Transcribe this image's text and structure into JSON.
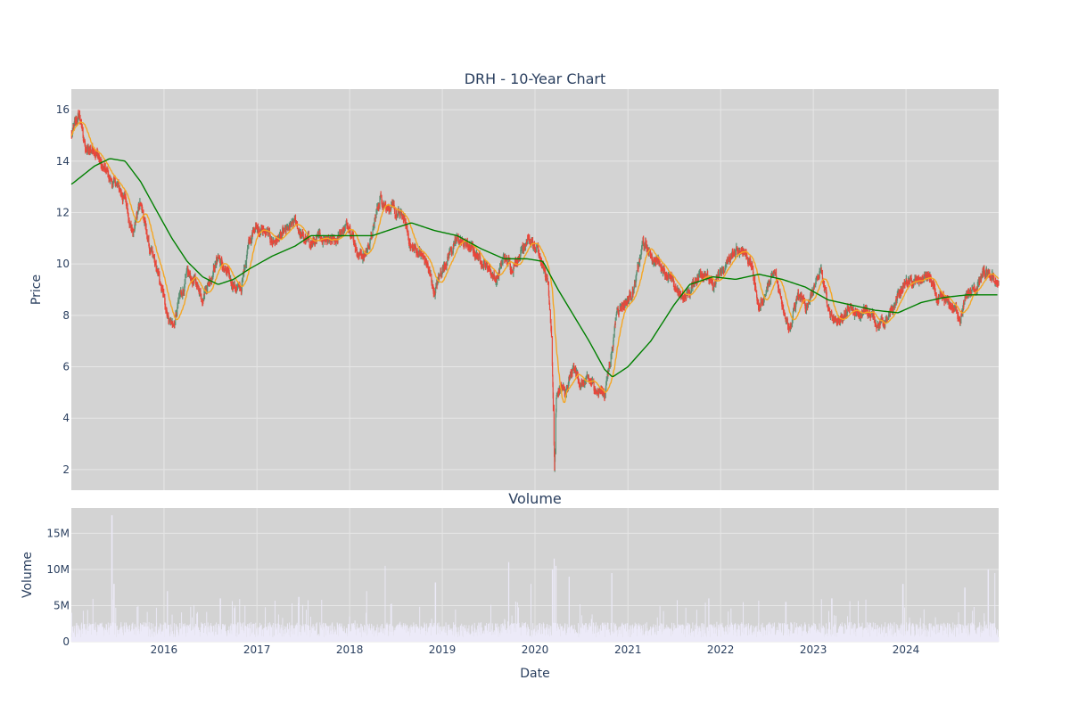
{
  "chart_data": [
    {
      "type": "candlestick",
      "title": "DRH - 10-Year Chart",
      "xlabel": "",
      "ylabel": "Price",
      "x_tick_labels": [
        "2016",
        "2017",
        "2018",
        "2019",
        "2020",
        "2021",
        "2022",
        "2023",
        "2024"
      ],
      "y_tick_labels": [
        "2",
        "4",
        "6",
        "8",
        "10",
        "12",
        "14",
        "16"
      ],
      "xlim": [
        "2015-01-01",
        "2024-12-31"
      ],
      "ylim": [
        1.2,
        16.8
      ],
      "grid": true,
      "colors": {
        "background": "#d3d3d3",
        "grid": "#e6e6e6",
        "up": "#5b8f73",
        "down": "#e8463a",
        "ma_short": "#f5a623",
        "ma_long": "#008000"
      },
      "close_points": [
        [
          "2015-01-02",
          15.0
        ],
        [
          "2015-02-01",
          15.8
        ],
        [
          "2015-03-01",
          14.3
        ],
        [
          "2015-04-01",
          14.6
        ],
        [
          "2015-05-01",
          13.8
        ],
        [
          "2015-06-01",
          13.3
        ],
        [
          "2015-07-01",
          13.0
        ],
        [
          "2015-08-01",
          12.5
        ],
        [
          "2015-09-01",
          11.2
        ],
        [
          "2015-10-01",
          12.5
        ],
        [
          "2015-11-01",
          10.7
        ],
        [
          "2015-12-01",
          9.8
        ],
        [
          "2016-01-01",
          8.6
        ],
        [
          "2016-01-20",
          7.9
        ],
        [
          "2016-02-10",
          7.6
        ],
        [
          "2016-03-01",
          8.6
        ],
        [
          "2016-04-01",
          9.5
        ],
        [
          "2016-05-01",
          9.3
        ],
        [
          "2016-06-01",
          8.8
        ],
        [
          "2016-07-01",
          9.5
        ],
        [
          "2016-08-01",
          10.3
        ],
        [
          "2016-09-01",
          9.6
        ],
        [
          "2016-10-01",
          9.2
        ],
        [
          "2016-11-01",
          9.0
        ],
        [
          "2016-12-01",
          11.1
        ],
        [
          "2017-01-01",
          11.4
        ],
        [
          "2017-02-01",
          11.2
        ],
        [
          "2017-03-01",
          10.9
        ],
        [
          "2017-04-01",
          11.0
        ],
        [
          "2017-05-01",
          11.2
        ],
        [
          "2017-06-01",
          11.6
        ],
        [
          "2017-07-01",
          11.0
        ],
        [
          "2017-08-01",
          10.8
        ],
        [
          "2017-09-01",
          10.9
        ],
        [
          "2017-10-01",
          11.1
        ],
        [
          "2017-11-01",
          11.0
        ],
        [
          "2017-12-01",
          11.3
        ],
        [
          "2018-01-01",
          11.6
        ],
        [
          "2018-02-01",
          10.5
        ],
        [
          "2018-03-01",
          10.3
        ],
        [
          "2018-04-01",
          11.2
        ],
        [
          "2018-05-01",
          12.6
        ],
        [
          "2018-06-01",
          12.3
        ],
        [
          "2018-07-01",
          11.9
        ],
        [
          "2018-08-01",
          11.8
        ],
        [
          "2018-09-01",
          10.6
        ],
        [
          "2018-10-01",
          10.5
        ],
        [
          "2018-11-01",
          10.0
        ],
        [
          "2018-12-01",
          8.9
        ],
        [
          "2019-01-01",
          9.8
        ],
        [
          "2019-02-01",
          10.5
        ],
        [
          "2019-03-01",
          10.9
        ],
        [
          "2019-04-01",
          10.8
        ],
        [
          "2019-05-01",
          10.5
        ],
        [
          "2019-06-01",
          10.2
        ],
        [
          "2019-07-01",
          9.9
        ],
        [
          "2019-08-01",
          9.4
        ],
        [
          "2019-09-01",
          10.2
        ],
        [
          "2019-10-01",
          9.9
        ],
        [
          "2019-11-01",
          10.4
        ],
        [
          "2019-12-01",
          11.1
        ],
        [
          "2020-01-01",
          10.5
        ],
        [
          "2020-02-01",
          10.0
        ],
        [
          "2020-02-20",
          9.4
        ],
        [
          "2020-03-05",
          7.5
        ],
        [
          "2020-03-12",
          5.0
        ],
        [
          "2020-03-18",
          2.1
        ],
        [
          "2020-03-25",
          4.8
        ],
        [
          "2020-04-10",
          5.2
        ],
        [
          "2020-05-01",
          4.9
        ],
        [
          "2020-06-01",
          5.9
        ],
        [
          "2020-07-01",
          5.3
        ],
        [
          "2020-08-01",
          5.4
        ],
        [
          "2020-09-01",
          5.1
        ],
        [
          "2020-10-01",
          5.0
        ],
        [
          "2020-11-01",
          6.8
        ],
        [
          "2020-11-20",
          8.3
        ],
        [
          "2020-12-01",
          8.4
        ],
        [
          "2021-01-01",
          8.6
        ],
        [
          "2021-02-01",
          9.3
        ],
        [
          "2021-03-01",
          10.8
        ],
        [
          "2021-04-01",
          10.3
        ],
        [
          "2021-05-01",
          10.1
        ],
        [
          "2021-06-01",
          9.7
        ],
        [
          "2021-07-01",
          9.1
        ],
        [
          "2021-08-01",
          8.7
        ],
        [
          "2021-09-01",
          8.9
        ],
        [
          "2021-10-01",
          9.5
        ],
        [
          "2021-11-01",
          9.8
        ],
        [
          "2021-12-01",
          9.0
        ],
        [
          "2022-01-01",
          9.6
        ],
        [
          "2022-02-01",
          10.1
        ],
        [
          "2022-03-01",
          10.4
        ],
        [
          "2022-04-01",
          10.6
        ],
        [
          "2022-05-01",
          10.0
        ],
        [
          "2022-06-01",
          8.3
        ],
        [
          "2022-07-01",
          9.0
        ],
        [
          "2022-08-01",
          9.6
        ],
        [
          "2022-09-01",
          8.5
        ],
        [
          "2022-10-01",
          7.6
        ],
        [
          "2022-11-01",
          8.8
        ],
        [
          "2022-12-01",
          8.2
        ],
        [
          "2023-01-01",
          9.2
        ],
        [
          "2023-02-01",
          9.6
        ],
        [
          "2023-03-01",
          8.2
        ],
        [
          "2023-04-01",
          7.8
        ],
        [
          "2023-05-01",
          8.0
        ],
        [
          "2023-06-01",
          8.2
        ],
        [
          "2023-07-01",
          7.9
        ],
        [
          "2023-08-01",
          8.3
        ],
        [
          "2023-09-01",
          7.8
        ],
        [
          "2023-10-01",
          7.7
        ],
        [
          "2023-11-01",
          7.9
        ],
        [
          "2023-12-01",
          8.8
        ],
        [
          "2024-01-01",
          9.3
        ],
        [
          "2024-02-01",
          9.2
        ],
        [
          "2024-03-01",
          9.4
        ],
        [
          "2024-04-01",
          9.5
        ],
        [
          "2024-05-01",
          8.6
        ],
        [
          "2024-06-01",
          8.5
        ],
        [
          "2024-07-01",
          8.3
        ],
        [
          "2024-08-01",
          8.0
        ],
        [
          "2024-09-01",
          8.8
        ],
        [
          "2024-10-01",
          9.0
        ],
        [
          "2024-11-01",
          9.6
        ],
        [
          "2024-12-01",
          9.4
        ],
        [
          "2024-12-31",
          9.3
        ]
      ],
      "ma_long_points": [
        [
          "2015-01-02",
          13.1
        ],
        [
          "2015-04-01",
          13.8
        ],
        [
          "2015-06-01",
          14.1
        ],
        [
          "2015-08-01",
          14.0
        ],
        [
          "2015-10-01",
          13.2
        ],
        [
          "2015-12-01",
          12.1
        ],
        [
          "2016-02-01",
          11.0
        ],
        [
          "2016-04-01",
          10.1
        ],
        [
          "2016-06-01",
          9.5
        ],
        [
          "2016-08-01",
          9.2
        ],
        [
          "2016-10-01",
          9.4
        ],
        [
          "2016-12-01",
          9.8
        ],
        [
          "2017-03-01",
          10.3
        ],
        [
          "2017-06-01",
          10.7
        ],
        [
          "2017-08-01",
          11.1
        ],
        [
          "2017-11-01",
          11.1
        ],
        [
          "2018-02-01",
          11.1
        ],
        [
          "2018-04-01",
          11.1
        ],
        [
          "2018-07-01",
          11.4
        ],
        [
          "2018-09-01",
          11.6
        ],
        [
          "2018-12-01",
          11.3
        ],
        [
          "2019-03-01",
          11.1
        ],
        [
          "2019-06-01",
          10.6
        ],
        [
          "2019-09-01",
          10.2
        ],
        [
          "2019-12-01",
          10.2
        ],
        [
          "2020-02-01",
          10.1
        ],
        [
          "2020-04-01",
          9.0
        ],
        [
          "2020-06-01",
          8.0
        ],
        [
          "2020-08-01",
          7.0
        ],
        [
          "2020-10-01",
          5.9
        ],
        [
          "2020-11-01",
          5.6
        ],
        [
          "2021-01-01",
          6.0
        ],
        [
          "2021-04-01",
          7.0
        ],
        [
          "2021-07-01",
          8.4
        ],
        [
          "2021-09-01",
          9.2
        ],
        [
          "2021-12-01",
          9.5
        ],
        [
          "2022-03-01",
          9.4
        ],
        [
          "2022-06-01",
          9.6
        ],
        [
          "2022-09-01",
          9.4
        ],
        [
          "2022-12-01",
          9.1
        ],
        [
          "2023-03-01",
          8.6
        ],
        [
          "2023-06-01",
          8.4
        ],
        [
          "2023-09-01",
          8.2
        ],
        [
          "2023-12-01",
          8.1
        ],
        [
          "2024-03-01",
          8.5
        ],
        [
          "2024-06-01",
          8.7
        ],
        [
          "2024-09-01",
          8.8
        ],
        [
          "2024-12-31",
          8.8
        ]
      ],
      "ma_short_window_days": 45
    },
    {
      "type": "bar",
      "title": "Volume",
      "xlabel": "Date",
      "ylabel": "Volume",
      "x_tick_labels": [
        "2016",
        "2017",
        "2018",
        "2019",
        "2020",
        "2021",
        "2022",
        "2023",
        "2024"
      ],
      "y_tick_labels": [
        "0",
        "5M",
        "10M",
        "15M"
      ],
      "xlim": [
        "2015-01-01",
        "2024-12-31"
      ],
      "ylim": [
        0,
        18500000
      ],
      "grid": true,
      "colors": {
        "bar": "#eceaf8"
      },
      "base_volume": 1500000,
      "spikes": [
        [
          "2015-06-10",
          17500000
        ],
        [
          "2015-06-18",
          8000000
        ],
        [
          "2016-01-15",
          7000000
        ],
        [
          "2016-08-10",
          6000000
        ],
        [
          "2017-06-15",
          6200000
        ],
        [
          "2018-05-20",
          10500000
        ],
        [
          "2018-03-10",
          7000000
        ],
        [
          "2018-12-05",
          8200000
        ],
        [
          "2019-09-20",
          11000000
        ],
        [
          "2019-12-15",
          8000000
        ],
        [
          "2020-03-10",
          10000000
        ],
        [
          "2020-03-16",
          11500000
        ],
        [
          "2020-03-23",
          10500000
        ],
        [
          "2020-05-15",
          9000000
        ],
        [
          "2020-10-30",
          9500000
        ],
        [
          "2021-11-15",
          6000000
        ],
        [
          "2022-09-15",
          5500000
        ],
        [
          "2023-03-15",
          6000000
        ],
        [
          "2023-12-20",
          8000000
        ],
        [
          "2024-08-20",
          7500000
        ],
        [
          "2024-11-20",
          10000000
        ],
        [
          "2024-12-15",
          9500000
        ]
      ]
    }
  ]
}
